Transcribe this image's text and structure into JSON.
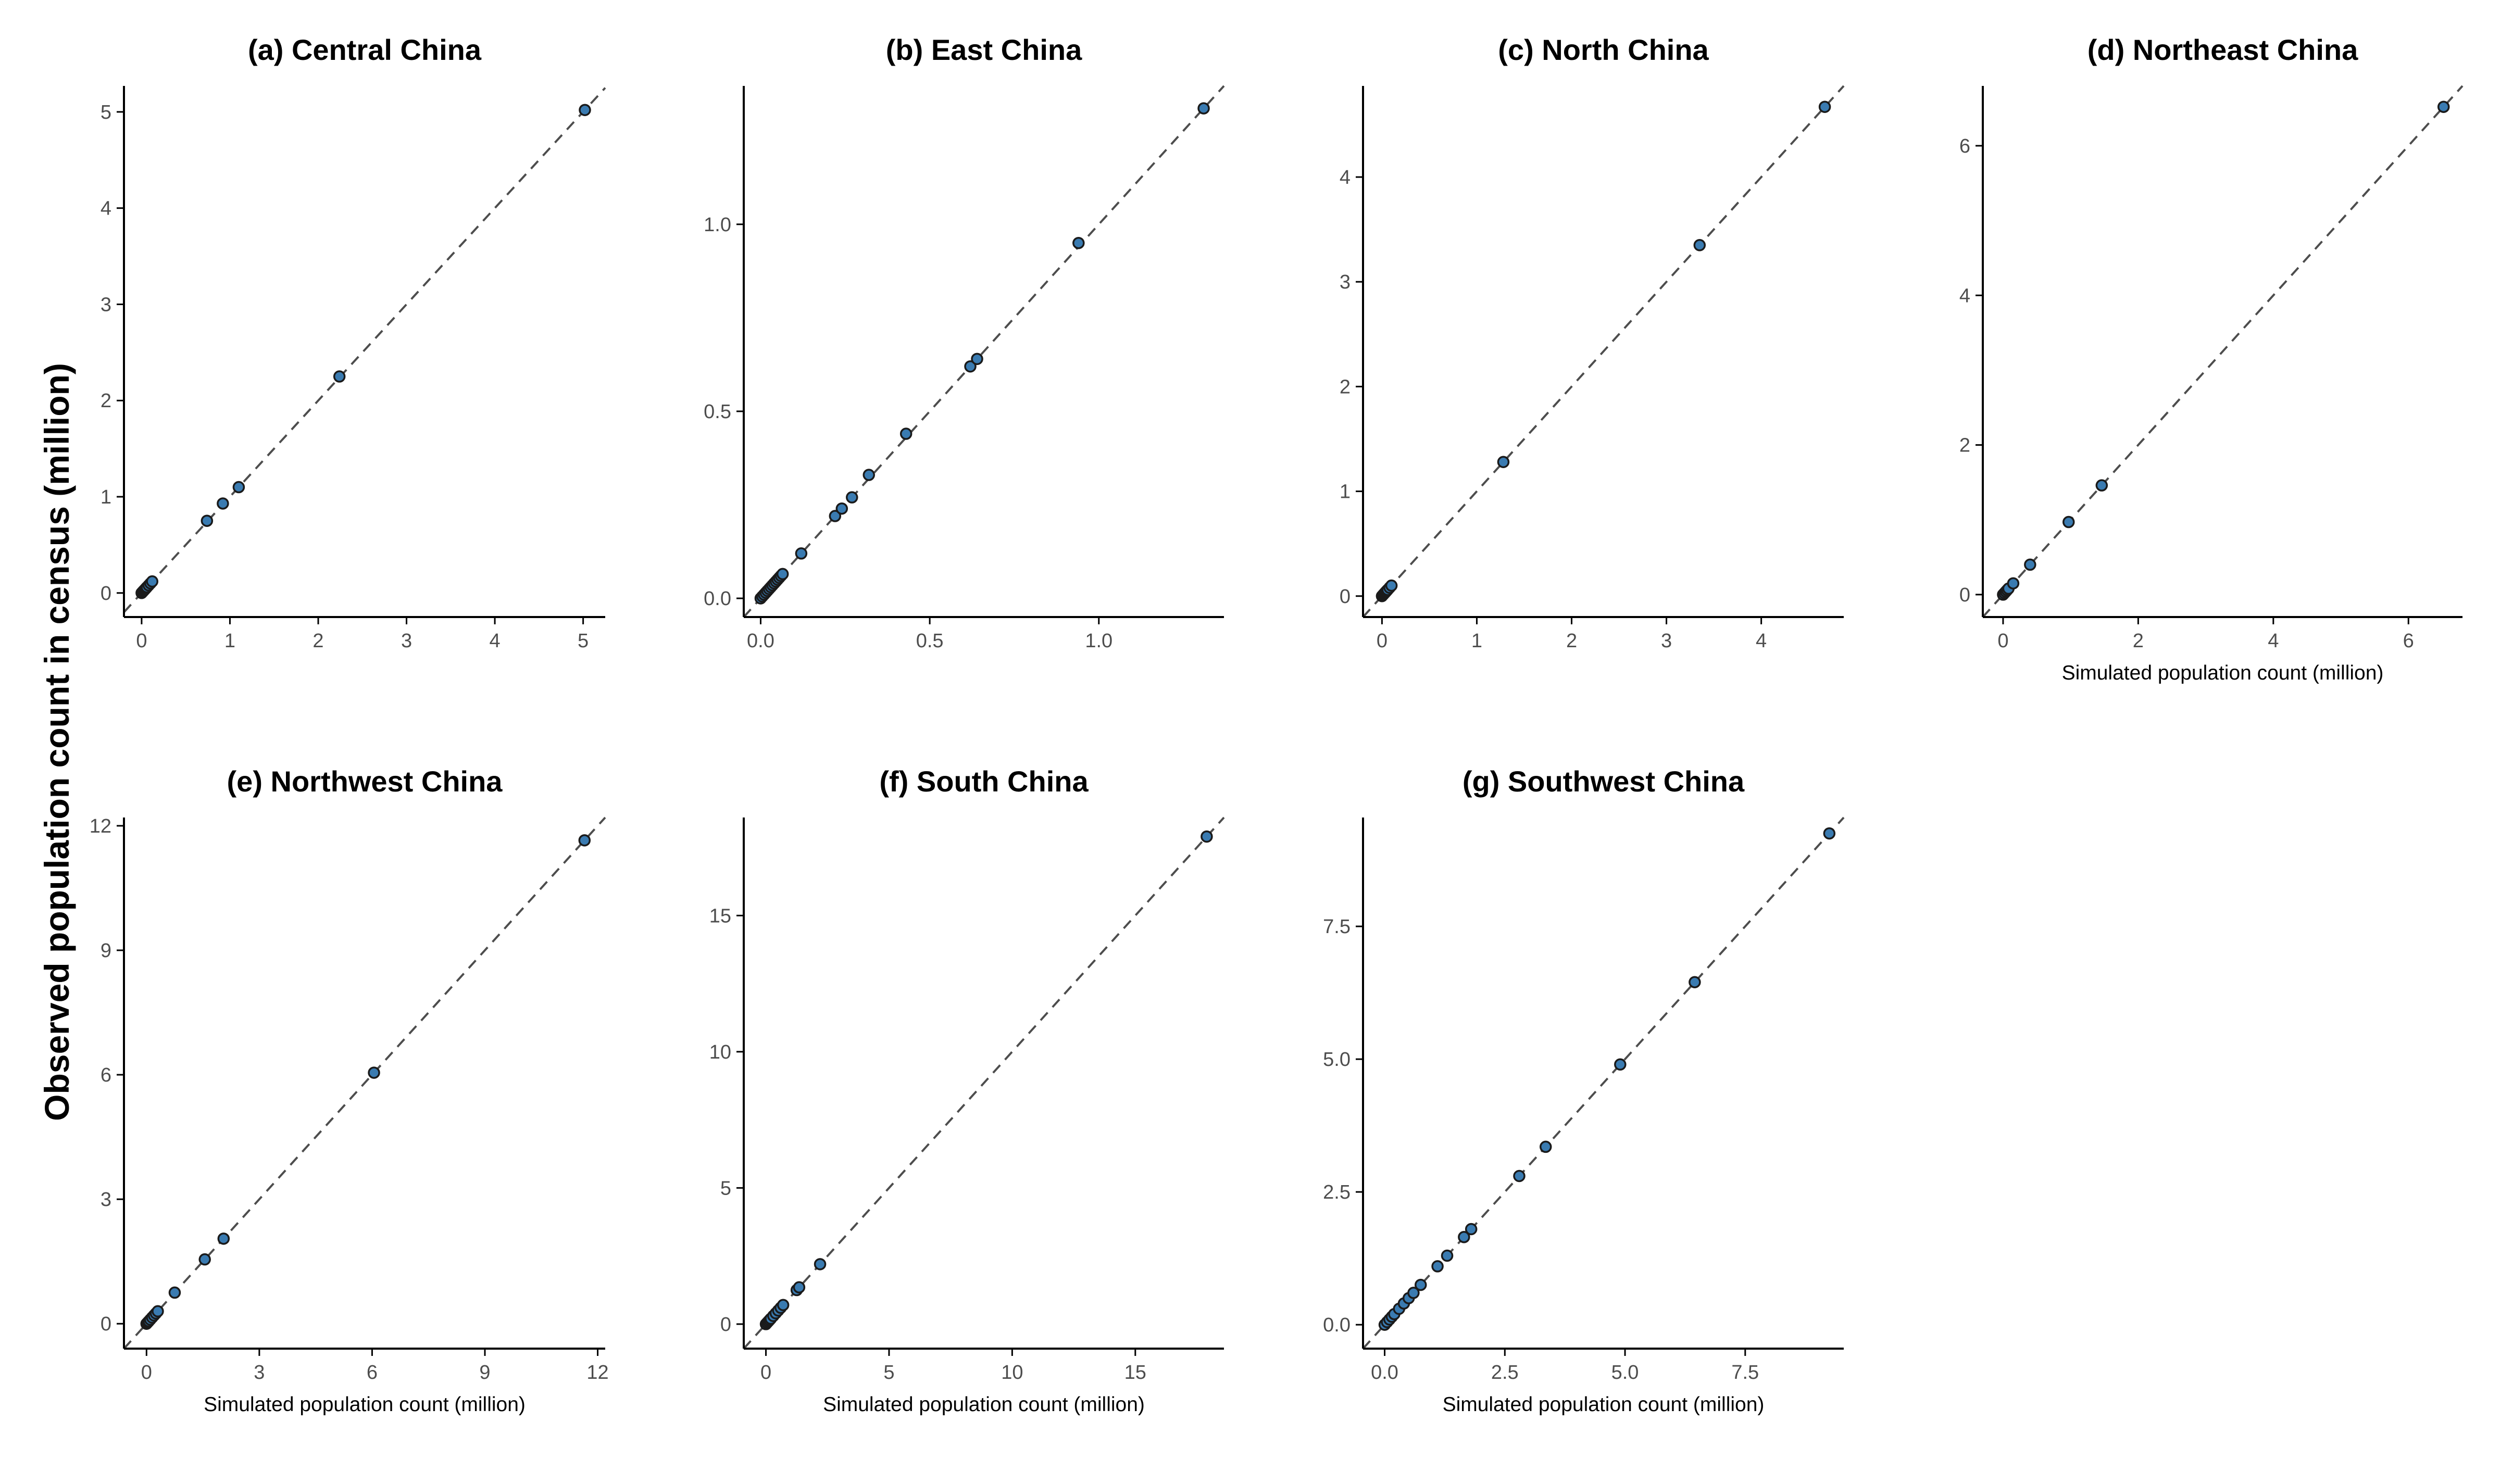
{
  "figure": {
    "ylabel": "Observed population count in census (million)"
  },
  "style": {
    "point_fill": "#3a7bb1",
    "point_stroke": "#1a1a1a",
    "reference_line": "#4d4d4d",
    "axis_color": "#000000",
    "tick_label_color": "#4d4d4d"
  },
  "chart_data": [
    {
      "type": "scatter",
      "title": "(a) Central China",
      "xlabel": "",
      "xlim": [
        -0.2,
        5.25
      ],
      "ylim": [
        -0.25,
        5.27
      ],
      "xticks": [
        0,
        1,
        2,
        3,
        4,
        5
      ],
      "yticks": [
        0,
        1,
        2,
        3,
        4,
        5
      ],
      "tick_labels_x": [
        "0",
        "1",
        "2",
        "3",
        "4",
        "5"
      ],
      "tick_labels_y": [
        "0",
        "1",
        "2",
        "3",
        "4",
        "5"
      ],
      "reference_line": "y = x",
      "points": [
        [
          0,
          0
        ],
        [
          0.01,
          0.01
        ],
        [
          0.02,
          0.02
        ],
        [
          0.03,
          0.03
        ],
        [
          0.04,
          0.04
        ],
        [
          0.05,
          0.05
        ],
        [
          0.06,
          0.06
        ],
        [
          0.08,
          0.08
        ],
        [
          0.1,
          0.1
        ],
        [
          0.12,
          0.12
        ],
        [
          0.74,
          0.75
        ],
        [
          0.92,
          0.93
        ],
        [
          1.1,
          1.1
        ],
        [
          2.24,
          2.25
        ],
        [
          5.02,
          5.02
        ]
      ]
    },
    {
      "type": "scatter",
      "title": "(b) East China",
      "xlabel": "",
      "xlim": [
        -0.05,
        1.37
      ],
      "ylim": [
        -0.05,
        1.37
      ],
      "xticks": [
        0,
        0.5,
        1.0
      ],
      "yticks": [
        0,
        0.5,
        1.0
      ],
      "tick_labels_x": [
        "0.0",
        "0.5",
        "1.0"
      ],
      "tick_labels_y": [
        "0.0",
        "0.5",
        "1.0"
      ],
      "reference_line": "y = x",
      "points": [
        [
          0,
          0
        ],
        [
          0.005,
          0.005
        ],
        [
          0.01,
          0.01
        ],
        [
          0.015,
          0.015
        ],
        [
          0.02,
          0.02
        ],
        [
          0.025,
          0.025
        ],
        [
          0.03,
          0.03
        ],
        [
          0.035,
          0.035
        ],
        [
          0.04,
          0.04
        ],
        [
          0.045,
          0.045
        ],
        [
          0.05,
          0.05
        ],
        [
          0.055,
          0.055
        ],
        [
          0.06,
          0.06
        ],
        [
          0.065,
          0.065
        ],
        [
          0.12,
          0.12
        ],
        [
          0.22,
          0.22
        ],
        [
          0.24,
          0.24
        ],
        [
          0.27,
          0.27
        ],
        [
          0.32,
          0.33
        ],
        [
          0.43,
          0.44
        ],
        [
          0.62,
          0.62
        ],
        [
          0.64,
          0.64
        ],
        [
          0.94,
          0.95
        ],
        [
          1.31,
          1.31
        ]
      ]
    },
    {
      "type": "scatter",
      "title": "(c) North China",
      "xlabel": "",
      "xlim": [
        -0.2,
        4.87
      ],
      "ylim": [
        -0.2,
        4.87
      ],
      "xticks": [
        0,
        1,
        2,
        3,
        4
      ],
      "yticks": [
        0,
        1,
        2,
        3,
        4
      ],
      "tick_labels_x": [
        "0",
        "1",
        "2",
        "3",
        "4"
      ],
      "tick_labels_y": [
        "0",
        "1",
        "2",
        "3",
        "4"
      ],
      "reference_line": "y = x",
      "points": [
        [
          0,
          0
        ],
        [
          0.01,
          0.01
        ],
        [
          0.02,
          0.02
        ],
        [
          0.03,
          0.03
        ],
        [
          0.04,
          0.04
        ],
        [
          0.05,
          0.05
        ],
        [
          0.06,
          0.06
        ],
        [
          0.08,
          0.08
        ],
        [
          0.1,
          0.1
        ],
        [
          1.28,
          1.28
        ],
        [
          3.35,
          3.35
        ],
        [
          4.67,
          4.67
        ]
      ]
    },
    {
      "type": "scatter",
      "title": "(d) Northeast China",
      "xlabel": "Simulated population count (million)",
      "xlim": [
        -0.3,
        6.8
      ],
      "ylim": [
        -0.3,
        6.8
      ],
      "xticks": [
        0,
        2,
        4,
        6
      ],
      "yticks": [
        0,
        2,
        4,
        6
      ],
      "tick_labels_x": [
        "0",
        "2",
        "4",
        "6"
      ],
      "tick_labels_y": [
        "0",
        "2",
        "4",
        "6"
      ],
      "reference_line": "y = x",
      "points": [
        [
          0,
          0
        ],
        [
          0.02,
          0.02
        ],
        [
          0.04,
          0.04
        ],
        [
          0.06,
          0.06
        ],
        [
          0.08,
          0.08
        ],
        [
          0.15,
          0.15
        ],
        [
          0.4,
          0.4
        ],
        [
          0.97,
          0.97
        ],
        [
          1.46,
          1.46
        ],
        [
          6.52,
          6.52
        ]
      ]
    },
    {
      "type": "scatter",
      "title": "(e) Northwest China",
      "xlabel": "Simulated population count (million)",
      "xlim": [
        -0.6,
        12.2
      ],
      "ylim": [
        -0.6,
        12.2
      ],
      "xticks": [
        0,
        3,
        6,
        9,
        12
      ],
      "yticks": [
        0,
        3,
        6,
        9,
        12
      ],
      "tick_labels_x": [
        "0",
        "3",
        "6",
        "9",
        "12"
      ],
      "tick_labels_y": [
        "0",
        "3",
        "6",
        "9",
        "12"
      ],
      "reference_line": "y = x",
      "points": [
        [
          0,
          0
        ],
        [
          0.03,
          0.03
        ],
        [
          0.06,
          0.06
        ],
        [
          0.1,
          0.1
        ],
        [
          0.15,
          0.15
        ],
        [
          0.2,
          0.2
        ],
        [
          0.25,
          0.25
        ],
        [
          0.3,
          0.3
        ],
        [
          0.75,
          0.75
        ],
        [
          1.55,
          1.55
        ],
        [
          2.05,
          2.05
        ],
        [
          6.05,
          6.05
        ],
        [
          11.65,
          11.65
        ]
      ]
    },
    {
      "type": "scatter",
      "title": "(f) South China",
      "xlabel": "Simulated population count (million)",
      "xlim": [
        -0.9,
        18.6
      ],
      "ylim": [
        -0.9,
        18.6
      ],
      "xticks": [
        0,
        5,
        10,
        15
      ],
      "yticks": [
        0,
        5,
        10,
        15
      ],
      "tick_labels_x": [
        "0",
        "5",
        "10",
        "15"
      ],
      "tick_labels_y": [
        "0",
        "5",
        "10",
        "15"
      ],
      "reference_line": "y = x",
      "points": [
        [
          0,
          0
        ],
        [
          0.05,
          0.05
        ],
        [
          0.1,
          0.1
        ],
        [
          0.15,
          0.15
        ],
        [
          0.2,
          0.2
        ],
        [
          0.3,
          0.3
        ],
        [
          0.4,
          0.4
        ],
        [
          0.5,
          0.5
        ],
        [
          0.6,
          0.6
        ],
        [
          0.7,
          0.7
        ],
        [
          1.25,
          1.25
        ],
        [
          1.35,
          1.35
        ],
        [
          2.2,
          2.2
        ],
        [
          17.9,
          17.9
        ]
      ]
    },
    {
      "type": "scatter",
      "title": "(g) Southwest China",
      "xlabel": "Simulated population count (million)",
      "xlim": [
        -0.45,
        9.55
      ],
      "ylim": [
        -0.45,
        9.55
      ],
      "xticks": [
        0,
        2.5,
        5.0,
        7.5
      ],
      "yticks": [
        0,
        2.5,
        5.0,
        7.5
      ],
      "tick_labels_x": [
        "0.0",
        "2.5",
        "5.0",
        "7.5"
      ],
      "tick_labels_y": [
        "0.0",
        "2.5",
        "5.0",
        "7.5"
      ],
      "reference_line": "y = x",
      "points": [
        [
          0,
          0
        ],
        [
          0.05,
          0.05
        ],
        [
          0.1,
          0.1
        ],
        [
          0.15,
          0.15
        ],
        [
          0.2,
          0.2
        ],
        [
          0.3,
          0.3
        ],
        [
          0.4,
          0.4
        ],
        [
          0.5,
          0.5
        ],
        [
          0.6,
          0.6
        ],
        [
          0.75,
          0.75
        ],
        [
          1.1,
          1.1
        ],
        [
          1.3,
          1.3
        ],
        [
          1.65,
          1.65
        ],
        [
          1.8,
          1.8
        ],
        [
          2.8,
          2.8
        ],
        [
          3.35,
          3.35
        ],
        [
          4.9,
          4.9
        ],
        [
          6.45,
          6.45
        ],
        [
          9.25,
          9.25
        ]
      ]
    }
  ]
}
